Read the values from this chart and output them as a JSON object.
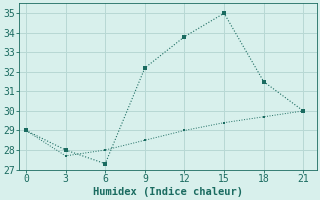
{
  "xlabel": "Humidex (Indice chaleur)",
  "ylabel": "",
  "background_color": "#d8f0ec",
  "grid_color": "#b8d8d4",
  "line_color": "#1a6b60",
  "line1_x": [
    0,
    3,
    6,
    9,
    12,
    15,
    18,
    21
  ],
  "line1_y": [
    29,
    28,
    27.3,
    32.2,
    33.8,
    35,
    31.5,
    30
  ],
  "line2_x": [
    0,
    3,
    6,
    9,
    12,
    15,
    18,
    21
  ],
  "line2_y": [
    29,
    27.7,
    28.0,
    28.5,
    29.0,
    29.4,
    29.7,
    30
  ],
  "xlim": [
    -0.5,
    22
  ],
  "ylim": [
    27,
    35.5
  ],
  "xticks": [
    0,
    3,
    6,
    9,
    12,
    15,
    18,
    21
  ],
  "yticks": [
    27,
    28,
    29,
    30,
    31,
    32,
    33,
    34,
    35
  ],
  "xlabel_fontsize": 7.5,
  "tick_fontsize": 7
}
